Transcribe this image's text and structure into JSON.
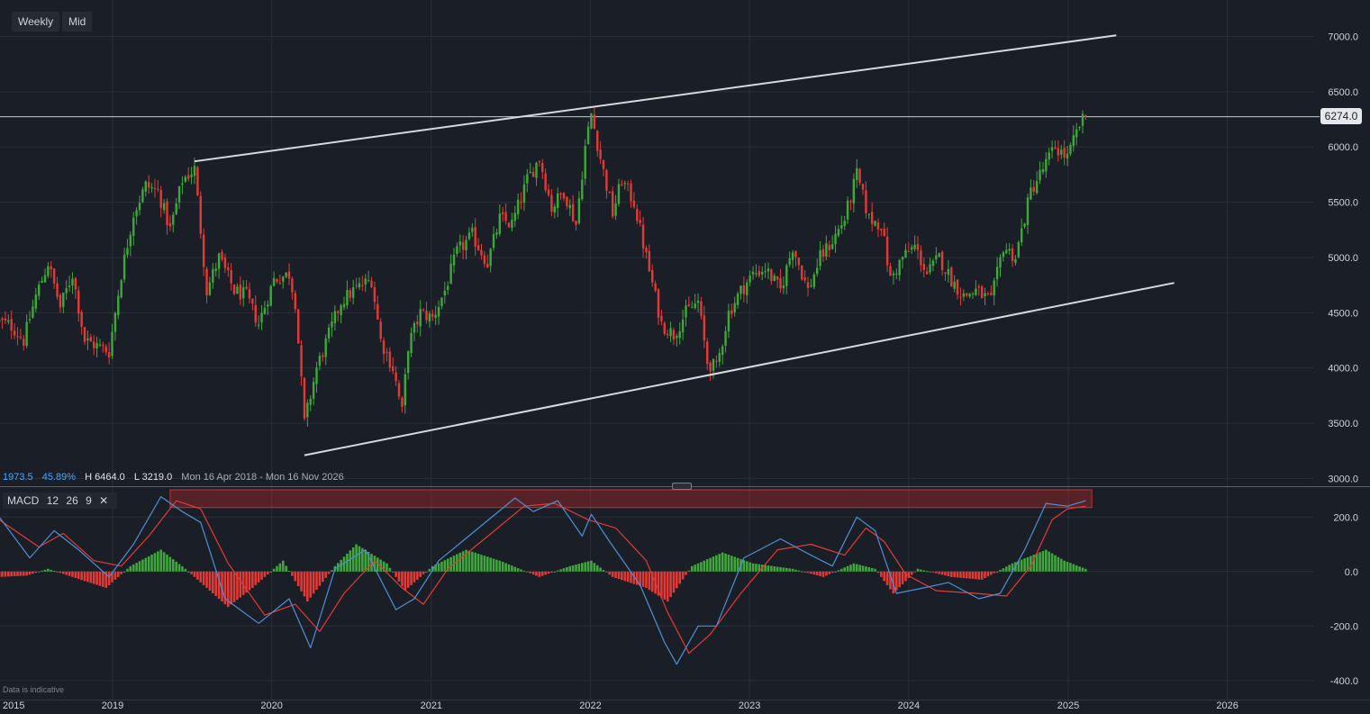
{
  "toolbar": {
    "interval_label": "Weekly",
    "price_type_label": "Mid"
  },
  "current_price_label": "6274.0",
  "info": {
    "change": "1973.5",
    "change_pct": "45.89%",
    "high": "H 6464.0",
    "low": "L 3219.0",
    "range": "Mon 16 Apr 2018 - Mon 16 Nov 2026"
  },
  "macd_panel": {
    "name": "MACD",
    "fast": "12",
    "slow": "26",
    "signal": "9"
  },
  "disclaimer": "Data is indicative",
  "colors": {
    "up": "#3fa83a",
    "down": "#e53935",
    "macd_line": "#4f8fd6",
    "signal_line": "#e53935",
    "trendline": "#d7d9dd"
  },
  "chart_data": [
    {
      "type": "candlestick",
      "interval": "weekly",
      "x_ticks": [
        "2015",
        "2019",
        "2020",
        "2021",
        "2022",
        "2023",
        "2024",
        "2025",
        "2026"
      ],
      "y_ticks": [
        3000,
        3500,
        4000,
        4500,
        5000,
        5500,
        6000,
        6500,
        7000
      ],
      "y_tick_labels": [
        "3000.0",
        "3500.0",
        "4000.0",
        "4500.0",
        "5000.0",
        "5500.0",
        "6000.0",
        "6500.0",
        "7000.0"
      ],
      "ylim": [
        2930,
        7330
      ],
      "grid": true,
      "high": 6464.0,
      "low": 3219.0,
      "current_price": 6274.0,
      "close_path": [
        [
          "2018-04-16",
          4420
        ],
        [
          "2018-05-14",
          4380
        ],
        [
          "2018-06-11",
          4250
        ],
        [
          "2018-07-09",
          4650
        ],
        [
          "2018-08-06",
          4950
        ],
        [
          "2018-09-03",
          4550
        ],
        [
          "2018-10-01",
          4850
        ],
        [
          "2018-10-29",
          4250
        ],
        [
          "2018-12-24",
          4150
        ],
        [
          "2019-01-21",
          4850
        ],
        [
          "2019-02-18",
          5400
        ],
        [
          "2019-03-18",
          5650
        ],
        [
          "2019-04-15",
          5600
        ],
        [
          "2019-05-13",
          5250
        ],
        [
          "2019-06-10",
          5700
        ],
        [
          "2019-07-08",
          5800
        ],
        [
          "2019-08-05",
          4700
        ],
        [
          "2019-09-02",
          5000
        ],
        [
          "2019-10-07",
          4700
        ],
        [
          "2019-11-04",
          4650
        ],
        [
          "2019-12-02",
          4400
        ],
        [
          "2020-01-06",
          4800
        ],
        [
          "2020-02-10",
          4850
        ],
        [
          "2020-02-24",
          4600
        ],
        [
          "2020-03-16",
          3500
        ],
        [
          "2020-04-13",
          4000
        ],
        [
          "2020-06-08",
          4600
        ],
        [
          "2020-07-06",
          4700
        ],
        [
          "2020-08-17",
          4800
        ],
        [
          "2020-09-07",
          4250
        ],
        [
          "2020-10-05",
          4000
        ],
        [
          "2020-10-26",
          3600
        ],
        [
          "2020-11-09",
          4200
        ],
        [
          "2020-12-07",
          4500
        ],
        [
          "2021-01-04",
          4450
        ],
        [
          "2021-02-01",
          4700
        ],
        [
          "2021-03-01",
          5050
        ],
        [
          "2021-04-05",
          5200
        ],
        [
          "2021-05-10",
          4950
        ],
        [
          "2021-06-07",
          5350
        ],
        [
          "2021-07-05",
          5300
        ],
        [
          "2021-08-09",
          5700
        ],
        [
          "2021-09-06",
          5900
        ],
        [
          "2021-10-04",
          5450
        ],
        [
          "2021-11-01",
          5600
        ],
        [
          "2021-11-29",
          5300
        ],
        [
          "2021-12-20",
          6000
        ],
        [
          "2022-01-03",
          6300
        ],
        [
          "2022-01-24",
          5900
        ],
        [
          "2022-02-21",
          5400
        ],
        [
          "2022-03-14",
          5700
        ],
        [
          "2022-04-11",
          5500
        ],
        [
          "2022-05-09",
          5000
        ],
        [
          "2022-06-13",
          4400
        ],
        [
          "2022-07-11",
          4300
        ],
        [
          "2022-08-08",
          4500
        ],
        [
          "2022-09-05",
          4600
        ],
        [
          "2022-09-26",
          4050
        ],
        [
          "2022-10-17",
          4000
        ],
        [
          "2022-11-14",
          4500
        ],
        [
          "2022-12-12",
          4700
        ],
        [
          "2023-01-09",
          4850
        ],
        [
          "2023-02-06",
          4900
        ],
        [
          "2023-03-13",
          4700
        ],
        [
          "2023-04-10",
          5100
        ],
        [
          "2023-05-15",
          4700
        ],
        [
          "2023-06-12",
          5000
        ],
        [
          "2023-07-10",
          5150
        ],
        [
          "2023-08-07",
          5350
        ],
        [
          "2023-09-04",
          5750
        ],
        [
          "2023-10-02",
          5350
        ],
        [
          "2023-10-30",
          5300
        ],
        [
          "2023-11-20",
          4800
        ],
        [
          "2023-12-18",
          5000
        ],
        [
          "2024-01-15",
          5100
        ],
        [
          "2024-02-12",
          4850
        ],
        [
          "2024-03-11",
          5000
        ],
        [
          "2024-04-08",
          4800
        ],
        [
          "2024-05-06",
          4650
        ],
        [
          "2024-06-03",
          4700
        ],
        [
          "2024-07-08",
          4600
        ],
        [
          "2024-08-05",
          5100
        ],
        [
          "2024-09-02",
          5000
        ],
        [
          "2024-10-07",
          5600
        ],
        [
          "2024-11-04",
          5800
        ],
        [
          "2024-12-02",
          6000
        ],
        [
          "2024-12-30",
          5900
        ],
        [
          "2025-01-27",
          6200
        ],
        [
          "2025-02-10",
          6274
        ]
      ],
      "trendlines": [
        {
          "name": "upper channel",
          "from": [
            "2019-07-08",
            5870
          ],
          "to": [
            "2025-04-21",
            7010
          ]
        },
        {
          "name": "lower channel",
          "from": [
            "2020-03-16",
            3210
          ],
          "to": [
            "2025-09-01",
            4770
          ]
        }
      ]
    },
    {
      "type": "macd",
      "params": [
        12,
        26,
        9
      ],
      "y_ticks": [
        -400,
        -200,
        0,
        200
      ],
      "y_tick_labels": [
        "-400.0",
        "-200.0",
        "0.0",
        "200.0"
      ],
      "ylim": [
        -470,
        300
      ],
      "macd_line": [
        [
          "2018-04-16",
          200
        ],
        [
          "2018-06-25",
          50
        ],
        [
          "2018-08-20",
          150
        ],
        [
          "2018-10-15",
          80
        ],
        [
          "2018-12-24",
          -20
        ],
        [
          "2019-02-18",
          100
        ],
        [
          "2019-04-22",
          275
        ],
        [
          "2019-06-10",
          220
        ],
        [
          "2019-07-22",
          180
        ],
        [
          "2019-09-16",
          -100
        ],
        [
          "2019-12-02",
          -190
        ],
        [
          "2020-02-10",
          -100
        ],
        [
          "2020-03-30",
          -280
        ],
        [
          "2020-05-25",
          10
        ],
        [
          "2020-08-03",
          80
        ],
        [
          "2020-10-12",
          -140
        ],
        [
          "2020-11-23",
          -100
        ],
        [
          "2021-01-18",
          40
        ],
        [
          "2021-04-12",
          150
        ],
        [
          "2021-07-12",
          270
        ],
        [
          "2021-08-23",
          220
        ],
        [
          "2021-10-18",
          260
        ],
        [
          "2021-12-13",
          130
        ],
        [
          "2022-01-03",
          210
        ],
        [
          "2022-02-14",
          110
        ],
        [
          "2022-04-25",
          -50
        ],
        [
          "2022-06-20",
          -260
        ],
        [
          "2022-07-18",
          -340
        ],
        [
          "2022-09-05",
          -200
        ],
        [
          "2022-10-17",
          -200
        ],
        [
          "2022-12-19",
          50
        ],
        [
          "2023-03-13",
          120
        ],
        [
          "2023-05-22",
          60
        ],
        [
          "2023-07-10",
          20
        ],
        [
          "2023-09-04",
          200
        ],
        [
          "2023-10-16",
          150
        ],
        [
          "2023-12-04",
          -80
        ],
        [
          "2024-02-05",
          -60
        ],
        [
          "2024-04-01",
          -40
        ],
        [
          "2024-06-10",
          -100
        ],
        [
          "2024-07-29",
          -80
        ],
        [
          "2024-09-23",
          80
        ],
        [
          "2024-11-11",
          250
        ],
        [
          "2024-12-30",
          240
        ],
        [
          "2025-02-10",
          260
        ]
      ],
      "signal_line": [
        [
          "2018-04-16",
          190
        ],
        [
          "2018-07-16",
          90
        ],
        [
          "2018-09-10",
          140
        ],
        [
          "2018-11-19",
          40
        ],
        [
          "2019-01-21",
          20
        ],
        [
          "2019-03-25",
          130
        ],
        [
          "2019-05-27",
          260
        ],
        [
          "2019-07-22",
          230
        ],
        [
          "2019-09-23",
          30
        ],
        [
          "2019-12-16",
          -160
        ],
        [
          "2020-02-24",
          -120
        ],
        [
          "2020-04-20",
          -220
        ],
        [
          "2020-06-15",
          -80
        ],
        [
          "2020-08-24",
          40
        ],
        [
          "2020-10-26",
          -60
        ],
        [
          "2020-12-14",
          -120
        ],
        [
          "2021-02-08",
          10
        ],
        [
          "2021-05-03",
          120
        ],
        [
          "2021-08-02",
          240
        ],
        [
          "2021-10-11",
          250
        ],
        [
          "2021-12-27",
          190
        ],
        [
          "2022-02-28",
          160
        ],
        [
          "2022-05-09",
          40
        ],
        [
          "2022-06-27",
          -150
        ],
        [
          "2022-08-15",
          -300
        ],
        [
          "2022-10-03",
          -230
        ],
        [
          "2022-12-12",
          -80
        ],
        [
          "2023-03-06",
          80
        ],
        [
          "2023-05-22",
          100
        ],
        [
          "2023-08-07",
          60
        ],
        [
          "2023-09-25",
          160
        ],
        [
          "2023-11-06",
          110
        ],
        [
          "2023-12-25",
          -10
        ],
        [
          "2024-03-04",
          -70
        ],
        [
          "2024-06-03",
          -80
        ],
        [
          "2024-08-12",
          -90
        ],
        [
          "2024-10-07",
          20
        ],
        [
          "2024-11-25",
          190
        ],
        [
          "2024-12-30",
          230
        ],
        [
          "2025-02-10",
          240
        ]
      ],
      "histogram_envelope": [
        [
          "2018-04-16",
          -20
        ],
        [
          "2018-06-18",
          -15
        ],
        [
          "2018-08-06",
          10
        ],
        [
          "2018-10-01",
          -20
        ],
        [
          "2018-12-17",
          -60
        ],
        [
          "2019-02-11",
          20
        ],
        [
          "2019-04-22",
          80
        ],
        [
          "2019-06-17",
          10
        ],
        [
          "2019-08-19",
          -80
        ],
        [
          "2019-09-23",
          -130
        ],
        [
          "2019-11-18",
          -60
        ],
        [
          "2020-01-27",
          40
        ],
        [
          "2020-03-23",
          -110
        ],
        [
          "2020-05-25",
          20
        ],
        [
          "2020-07-13",
          100
        ],
        [
          "2020-09-21",
          30
        ],
        [
          "2020-11-02",
          -70
        ],
        [
          "2021-01-04",
          20
        ],
        [
          "2021-03-22",
          80
        ],
        [
          "2021-06-07",
          40
        ],
        [
          "2021-09-06",
          -20
        ],
        [
          "2021-11-15",
          20
        ],
        [
          "2022-01-03",
          40
        ],
        [
          "2022-02-21",
          -20
        ],
        [
          "2022-05-09",
          -60
        ],
        [
          "2022-06-27",
          -110
        ],
        [
          "2022-08-22",
          20
        ],
        [
          "2022-10-31",
          70
        ],
        [
          "2023-01-09",
          30
        ],
        [
          "2023-04-10",
          10
        ],
        [
          "2023-06-19",
          -20
        ],
        [
          "2023-08-28",
          30
        ],
        [
          "2023-10-16",
          10
        ],
        [
          "2023-11-27",
          -80
        ],
        [
          "2024-01-22",
          10
        ],
        [
          "2024-04-08",
          -20
        ],
        [
          "2024-06-17",
          -30
        ],
        [
          "2024-08-26",
          30
        ],
        [
          "2024-11-11",
          80
        ],
        [
          "2024-12-23",
          40
        ],
        [
          "2025-02-10",
          10
        ]
      ],
      "resistance_zone": {
        "from": "2019-05-13",
        "to": "2025-02-24",
        "y_range": [
          235,
          300
        ]
      }
    }
  ]
}
